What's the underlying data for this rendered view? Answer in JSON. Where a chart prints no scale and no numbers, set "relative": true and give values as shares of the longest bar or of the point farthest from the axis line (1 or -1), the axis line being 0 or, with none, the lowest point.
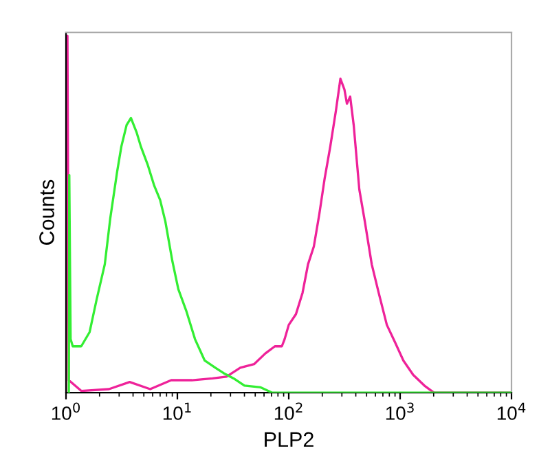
{
  "chart_data": {
    "type": "line",
    "xlabel": "PLP2",
    "ylabel": "Counts",
    "relative": true,
    "log": "x",
    "grid": false,
    "legend": false,
    "marker": "none",
    "line_style": "solid",
    "xlim": [
      1,
      10000
    ],
    "xticks": [
      {
        "value": 1,
        "label": "10$^{0}$"
      },
      {
        "value": 10,
        "label": "10$^{1}$"
      },
      {
        "value": 100,
        "label": "10$^{2}$"
      },
      {
        "value": 1000,
        "label": "10$^{3}$"
      },
      {
        "value": 10000,
        "label": "10$^{4}$"
      }
    ],
    "series": [
      {
        "color": "#33ee33",
        "x": [
          1.06,
          1.07,
          1.1,
          1.15,
          1.37,
          1.63,
          1.88,
          2.23,
          2.5,
          2.88,
          3.14,
          3.5,
          3.83,
          4.3,
          4.7,
          5.4,
          6.2,
          7.0,
          7.8,
          9.0,
          10.2,
          12,
          14.4,
          17.6,
          21.9,
          26,
          32,
          40,
          56,
          71,
          10000
        ],
        "values": [
          0,
          0.61,
          0.15,
          0.13,
          0.13,
          0.17,
          0.26,
          0.36,
          0.49,
          0.62,
          0.69,
          0.75,
          0.77,
          0.73,
          0.69,
          0.64,
          0.58,
          0.54,
          0.48,
          0.37,
          0.29,
          0.23,
          0.15,
          0.09,
          0.07,
          0.055,
          0.04,
          0.02,
          0.015,
          0,
          0
        ]
      },
      {
        "color": "#ee2299",
        "x": [
          1,
          1.03,
          1.06,
          1.37,
          2.43,
          3.73,
          5.7,
          8.8,
          13.5,
          20.7,
          27.6,
          36.7,
          48.8,
          61.6,
          75,
          86.7,
          91.8,
          100,
          116,
          133,
          149,
          168,
          188,
          210,
          236,
          265,
          291,
          316,
          333,
          356,
          383,
          430,
          482,
          556,
          642,
          760,
          904,
          1070,
          1310,
          1650,
          2010,
          10000
        ],
        "values": [
          0,
          1,
          0.035,
          0.005,
          0.01,
          0.03,
          0.01,
          0.035,
          0.035,
          0.04,
          0.045,
          0.07,
          0.08,
          0.11,
          0.13,
          0.13,
          0.15,
          0.19,
          0.22,
          0.28,
          0.36,
          0.41,
          0.5,
          0.6,
          0.69,
          0.79,
          0.88,
          0.85,
          0.81,
          0.83,
          0.75,
          0.57,
          0.48,
          0.36,
          0.28,
          0.19,
          0.14,
          0.09,
          0.05,
          0.02,
          0,
          0
        ]
      }
    ]
  }
}
